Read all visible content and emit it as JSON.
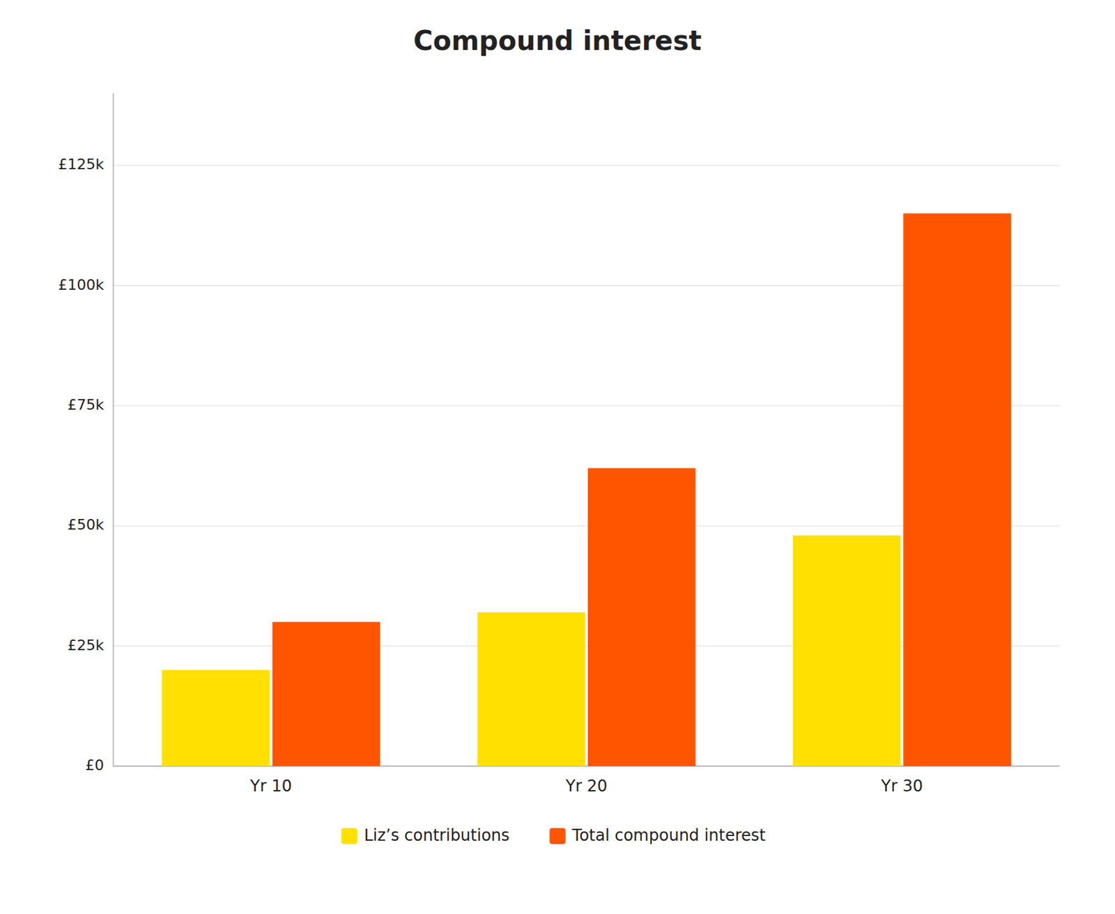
{
  "chart_data": {
    "type": "bar",
    "title": "Compound interest",
    "categories": [
      "Yr 10",
      "Yr 20",
      "Yr 30"
    ],
    "series": [
      {
        "name": "Liz’s contributions",
        "color": "#FFE000",
        "values": [
          20000,
          32000,
          48000
        ]
      },
      {
        "name": "Total compound interest",
        "color": "#FF5500",
        "values": [
          30000,
          62000,
          115000
        ]
      }
    ],
    "ylim": [
      0,
      140000
    ],
    "yticks": [
      {
        "value": 0,
        "label": "£0"
      },
      {
        "value": 25000,
        "label": "£25k"
      },
      {
        "value": 50000,
        "label": "£50k"
      },
      {
        "value": 75000,
        "label": "£75k"
      },
      {
        "value": 100000,
        "label": "£100k"
      },
      {
        "value": 125000,
        "label": "£125k"
      }
    ],
    "grid": true,
    "legend": "bottom"
  }
}
